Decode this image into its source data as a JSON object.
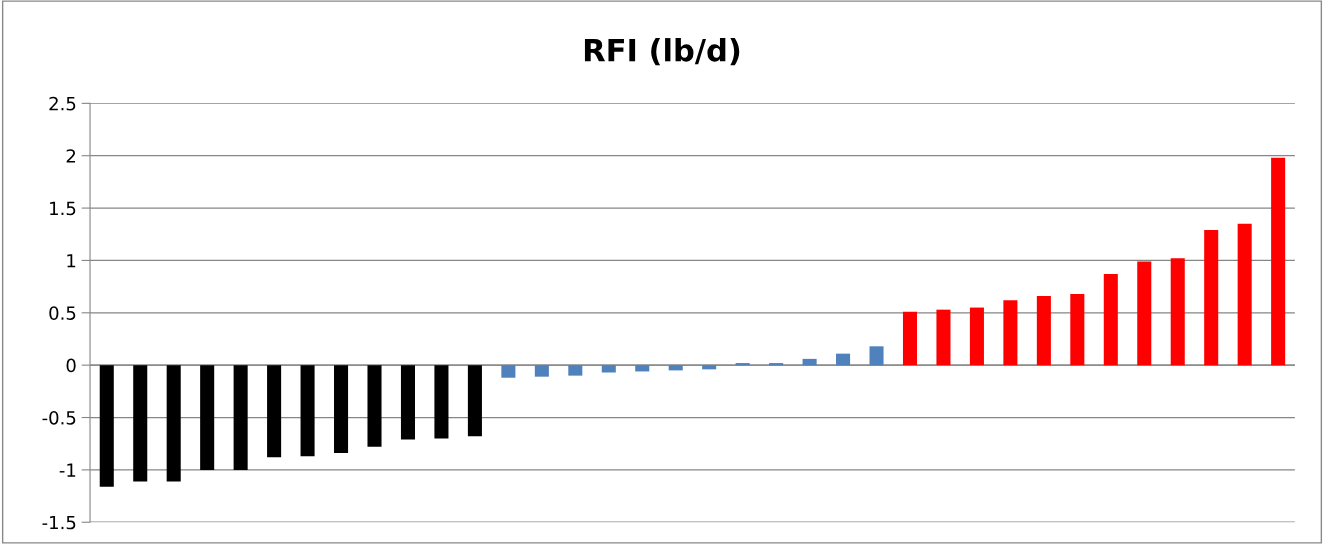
{
  "chart_data": {
    "type": "bar",
    "title": "RFI (lb/d)",
    "categories": [
      null,
      null,
      null,
      null,
      null,
      null,
      null,
      null,
      null,
      null,
      null,
      null,
      null,
      null,
      null,
      null,
      null,
      null,
      null,
      null,
      null,
      null,
      null,
      null,
      null,
      null,
      null,
      null,
      null,
      null,
      null,
      null,
      null,
      null,
      null,
      null
    ],
    "values": [
      -1.16,
      -1.11,
      -1.11,
      -1.0,
      -1.0,
      -0.88,
      -0.87,
      -0.84,
      -0.78,
      -0.71,
      -0.7,
      -0.68,
      -0.12,
      -0.11,
      -0.1,
      -0.07,
      -0.06,
      -0.05,
      -0.04,
      0.02,
      0.02,
      0.06,
      0.11,
      0.18,
      0.51,
      0.53,
      0.55,
      0.62,
      0.66,
      0.68,
      0.87,
      0.99,
      1.02,
      1.29,
      1.35,
      1.98
    ],
    "colors": [
      "#000000",
      "#000000",
      "#000000",
      "#000000",
      "#000000",
      "#000000",
      "#000000",
      "#000000",
      "#000000",
      "#000000",
      "#000000",
      "#000000",
      "#4f81bd",
      "#4f81bd",
      "#4f81bd",
      "#4f81bd",
      "#4f81bd",
      "#4f81bd",
      "#4f81bd",
      "#4f81bd",
      "#4f81bd",
      "#4f81bd",
      "#4f81bd",
      "#4f81bd",
      "#ff0000",
      "#ff0000",
      "#ff0000",
      "#ff0000",
      "#ff0000",
      "#ff0000",
      "#ff0000",
      "#ff0000",
      "#ff0000",
      "#ff0000",
      "#ff0000",
      "#ff0000"
    ],
    "ylim": [
      -1.5,
      2.5
    ],
    "yticks": [
      -1.5,
      -1,
      -0.5,
      0,
      0.5,
      1,
      1.5,
      2,
      2.5
    ],
    "grid": "y",
    "tick_labels": "y"
  }
}
